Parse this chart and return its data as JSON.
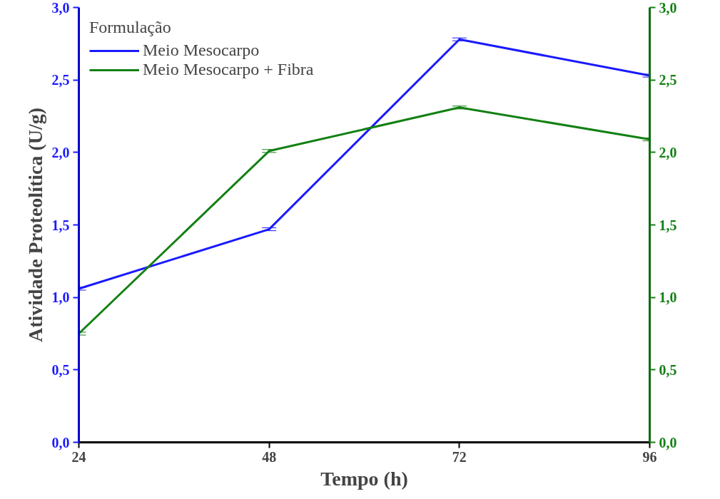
{
  "chart_data": {
    "type": "line",
    "xlabel": "Tempo (h)",
    "ylabel": "Atividade Proteolítica (U/g)",
    "legend_title": "Formulação",
    "legend": "top left",
    "grid": false,
    "marker": "none",
    "line_style": "solid",
    "x": [
      24,
      48,
      72,
      96
    ],
    "xlim": [
      24,
      96
    ],
    "xticks": [
      24,
      48,
      72,
      96
    ],
    "ylim": [
      0,
      3
    ],
    "yticks": [
      {
        "value": 0,
        "label": "0,0"
      },
      {
        "value": 0.5,
        "label": "0,5"
      },
      {
        "value": 1,
        "label": "1,0"
      },
      {
        "value": 1.5,
        "label": "1,5"
      },
      {
        "value": 2,
        "label": "2,0"
      },
      {
        "value": 2.5,
        "label": "2,5"
      },
      {
        "value": 3,
        "label": "3,0"
      }
    ],
    "y2lim": [
      0,
      3
    ],
    "y2ticks": [
      {
        "value": 0,
        "label": "0,0"
      },
      {
        "value": 0.5,
        "label": "0,5"
      },
      {
        "value": 1,
        "label": "1,0"
      },
      {
        "value": 1.5,
        "label": "1,5"
      },
      {
        "value": 2,
        "label": "2,0"
      },
      {
        "value": 2.5,
        "label": "2,5"
      },
      {
        "value": 3,
        "label": "3,0"
      }
    ],
    "series": [
      {
        "name": "Meio Mesocarpo",
        "color": "#1a1aff",
        "values": [
          1.06,
          1.47,
          2.78,
          2.53
        ],
        "errors": [
          0.01,
          0.01,
          0.01,
          0.01
        ]
      },
      {
        "name": "Meio Mesocarpo + Fibra",
        "color": "#138013",
        "axis": "y2",
        "values": [
          0.75,
          2.01,
          2.31,
          2.09
        ],
        "errors": [
          0.01,
          0.01,
          0.01,
          0.01
        ]
      }
    ]
  }
}
